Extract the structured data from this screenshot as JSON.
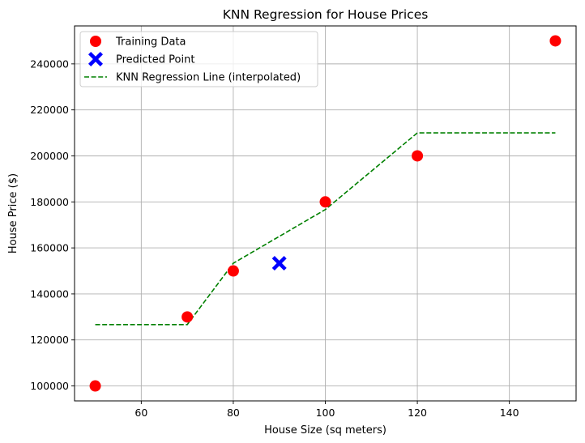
{
  "chart_data": {
    "type": "scatter",
    "title": "KNN Regression for House Prices",
    "xlabel": "House Size (sq meters)",
    "ylabel": "House Price ($)",
    "xlim": [
      45.5,
      154.5
    ],
    "ylim": [
      93500,
      256500
    ],
    "xticks": [
      60,
      80,
      100,
      120,
      140
    ],
    "yticks": [
      100000,
      120000,
      140000,
      160000,
      180000,
      200000,
      220000,
      240000
    ],
    "grid": true,
    "legend_position": "top-left",
    "series": [
      {
        "name": "Training Data",
        "kind": "scatter",
        "marker": "circle",
        "color": "#ff0000",
        "x": [
          50,
          70,
          80,
          100,
          120,
          150
        ],
        "y": [
          100000,
          130000,
          150000,
          180000,
          200000,
          250000
        ]
      },
      {
        "name": "Predicted Point",
        "kind": "scatter",
        "marker": "X",
        "color": "#0000ff",
        "x": [
          90
        ],
        "y": [
          153333
        ]
      },
      {
        "name": "KNN Regression Line (interpolated)",
        "kind": "line",
        "linestyle": "dashed",
        "color": "#008000",
        "x": [
          50,
          70,
          80,
          100,
          120,
          150
        ],
        "y": [
          126667,
          126667,
          153333,
          176667,
          210000,
          210000
        ]
      }
    ]
  }
}
